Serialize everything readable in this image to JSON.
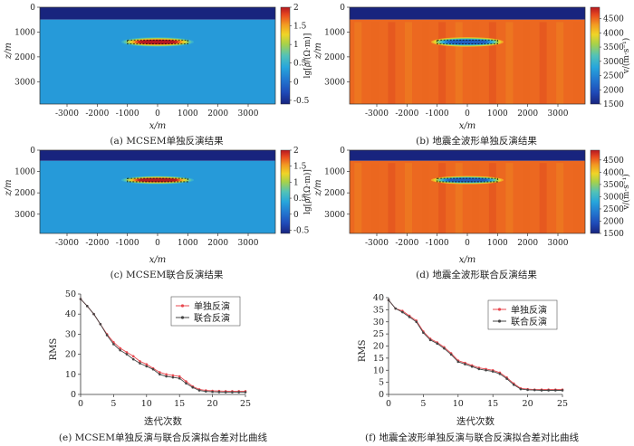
{
  "chart_data": [
    {
      "panel": "a",
      "type": "heatmap",
      "caption": "(a) MCSEM单独反演结果",
      "xlabel": "x/m",
      "ylabel": "z/m",
      "xlim": [
        -3900,
        3900
      ],
      "ylim": [
        3900,
        0
      ],
      "x_ticks": [
        "-3000",
        "-2000",
        "-1000",
        "0",
        "1000",
        "2000",
        "3000"
      ],
      "y_ticks": [
        "0",
        "1000",
        "2000",
        "3000"
      ],
      "colorbar": {
        "label": "lg[ρ/(Ω·m)]",
        "range": [
          -0.6,
          2.0
        ],
        "ticks": [
          "2",
          "1.5",
          "1",
          "0.5",
          "0",
          "-0.5"
        ]
      },
      "layers": [
        {
          "z_top": 0,
          "z_bottom": 500,
          "value": -0.6
        },
        {
          "z_top": 500,
          "z_bottom": 3900,
          "value": 0.3
        }
      ],
      "anomaly": {
        "x_center": 0,
        "z_center": 1400,
        "x_half_width": 1000,
        "z_half_height": 80,
        "peak_value": 2.0
      },
      "target_box": {
        "x_range": [
          -1000,
          1000
        ],
        "z_range": [
          1320,
          1480
        ]
      }
    },
    {
      "panel": "b",
      "type": "heatmap",
      "caption": "(b) 地震全波形单独反演结果",
      "xlabel": "x/m",
      "ylabel": "z/m",
      "xlim": [
        -3900,
        3900
      ],
      "ylim": [
        3900,
        0
      ],
      "x_ticks": [
        "-3000",
        "-2000",
        "-1000",
        "0",
        "1000",
        "2000",
        "3000"
      ],
      "y_ticks": [
        "0",
        "1000",
        "2000",
        "3000"
      ],
      "colorbar": {
        "label": "v/(m·s⁻¹)",
        "range": [
          1500,
          4900
        ],
        "ticks": [
          "4500",
          "4000",
          "3500",
          "3000",
          "2500",
          "2000",
          "1500"
        ]
      },
      "layers": [
        {
          "z_top": 0,
          "z_bottom": 500,
          "value": 1500
        },
        {
          "z_top": 500,
          "z_bottom": 3900,
          "value": 4500
        }
      ],
      "anomaly": {
        "x_center": 0,
        "z_center": 1400,
        "x_half_width": 1000,
        "z_half_height": 80,
        "peak_value": 2100
      },
      "target_box": {
        "x_range": [
          -1000,
          1000
        ],
        "z_range": [
          1320,
          1480
        ]
      }
    },
    {
      "panel": "c",
      "type": "heatmap",
      "caption": "(c) MCSEM联合反演结果",
      "xlabel": "x/m",
      "ylabel": "z/m",
      "xlim": [
        -3900,
        3900
      ],
      "ylim": [
        3900,
        0
      ],
      "x_ticks": [
        "-3000",
        "-2000",
        "-1000",
        "0",
        "1000",
        "2000",
        "3000"
      ],
      "y_ticks": [
        "0",
        "1000",
        "2000",
        "3000"
      ],
      "colorbar": {
        "label": "lg[ρ/(Ω·m)]",
        "range": [
          -0.6,
          2.0
        ],
        "ticks": [
          "2",
          "1.5",
          "1",
          "0.5",
          "0",
          "-0.5"
        ]
      },
      "layers": [
        {
          "z_top": 0,
          "z_bottom": 500,
          "value": -0.6
        },
        {
          "z_top": 500,
          "z_bottom": 3900,
          "value": 0.3
        }
      ],
      "anomaly": {
        "x_center": 0,
        "z_center": 1400,
        "x_half_width": 1000,
        "z_half_height": 80,
        "peak_value": 2.0
      },
      "target_box": {
        "x_range": [
          -1000,
          1000
        ],
        "z_range": [
          1320,
          1480
        ]
      }
    },
    {
      "panel": "d",
      "type": "heatmap",
      "caption": "(d) 地震全波形联合反演结果",
      "xlabel": "x/m",
      "ylabel": "z/m",
      "xlim": [
        -3900,
        3900
      ],
      "ylim": [
        3900,
        0
      ],
      "x_ticks": [
        "-3000",
        "-2000",
        "-1000",
        "0",
        "1000",
        "2000",
        "3000"
      ],
      "y_ticks": [
        "0",
        "1000",
        "2000",
        "3000"
      ],
      "colorbar": {
        "label": "v/(m·s⁻¹)",
        "range": [
          1500,
          4900
        ],
        "ticks": [
          "4500",
          "4000",
          "3500",
          "3000",
          "2500",
          "2000",
          "1500"
        ]
      },
      "layers": [
        {
          "z_top": 0,
          "z_bottom": 500,
          "value": 1500
        },
        {
          "z_top": 500,
          "z_bottom": 3900,
          "value": 4500
        }
      ],
      "anomaly": {
        "x_center": 0,
        "z_center": 1400,
        "x_half_width": 1000,
        "z_half_height": 80,
        "peak_value": 2100
      },
      "target_box": {
        "x_range": [
          -1000,
          1000
        ],
        "z_range": [
          1320,
          1480
        ]
      }
    },
    {
      "panel": "e",
      "type": "line",
      "caption": "(e) MCSEM单独反演与联合反演拟合差对比曲线",
      "xlabel": "迭代次数",
      "ylabel": "RMS",
      "xlim": [
        0,
        25
      ],
      "ylim": [
        0,
        50
      ],
      "x_ticks": [
        0,
        5,
        10,
        15,
        20,
        25
      ],
      "y_ticks": [
        0,
        10,
        20,
        30,
        40,
        50
      ],
      "legend": "top-right",
      "x": [
        0,
        1,
        2,
        3,
        4,
        5,
        6,
        7,
        8,
        9,
        10,
        11,
        12,
        13,
        14,
        15,
        16,
        17,
        18,
        19,
        20,
        21,
        22,
        23,
        24,
        25
      ],
      "series": [
        {
          "name": "单独反演",
          "color": "#e8484f",
          "values": [
            47.5,
            44,
            40,
            35,
            30,
            26,
            23,
            21,
            19,
            16.5,
            15,
            13,
            11,
            10,
            9.5,
            9,
            6.5,
            4,
            2.5,
            2,
            1.8,
            1.7,
            1.6,
            1.6,
            1.6,
            1.6
          ]
        },
        {
          "name": "联合反演",
          "color": "#444444",
          "values": [
            47.5,
            44,
            40,
            35,
            29.5,
            25,
            22,
            20,
            17.5,
            15.5,
            14,
            12.5,
            10,
            9,
            8.5,
            8,
            5.5,
            3.5,
            2,
            1.5,
            1.3,
            1.2,
            1.1,
            1.1,
            1.1,
            1.1
          ]
        }
      ]
    },
    {
      "panel": "f",
      "type": "line",
      "caption": "(f) 地震全波形单独反演与联合反演拟合差对比曲线",
      "xlabel": "迭代次数",
      "ylabel": "RMS",
      "xlim": [
        0,
        25
      ],
      "ylim": [
        0,
        40
      ],
      "x_ticks": [
        0,
        5,
        10,
        15,
        20,
        25
      ],
      "y_ticks": [
        0,
        5,
        10,
        15,
        20,
        25,
        30,
        35,
        40
      ],
      "legend": "top-right",
      "x": [
        0,
        1,
        2,
        3,
        4,
        5,
        6,
        7,
        8,
        9,
        10,
        11,
        12,
        13,
        14,
        15,
        16,
        17,
        18,
        19,
        20,
        21,
        22,
        23,
        24,
        25
      ],
      "series": [
        {
          "name": "单独反演",
          "color": "#e8484f",
          "values": [
            39,
            35.5,
            34.5,
            32.5,
            30.5,
            26,
            23,
            21.5,
            19.5,
            17,
            14,
            13,
            12,
            11,
            10.5,
            10,
            9,
            7,
            4.5,
            2.5,
            2.2,
            2.0,
            2.0,
            2.0,
            2.0,
            2.0
          ]
        },
        {
          "name": "联合反演",
          "color": "#444444",
          "values": [
            39,
            35.5,
            34,
            32,
            30,
            25.5,
            22.5,
            21,
            19,
            16.5,
            13.5,
            12.5,
            11.5,
            10.5,
            10,
            9.5,
            8.5,
            6.5,
            4,
            2.2,
            1.9,
            1.8,
            1.7,
            1.7,
            1.7,
            1.7
          ]
        }
      ]
    }
  ]
}
